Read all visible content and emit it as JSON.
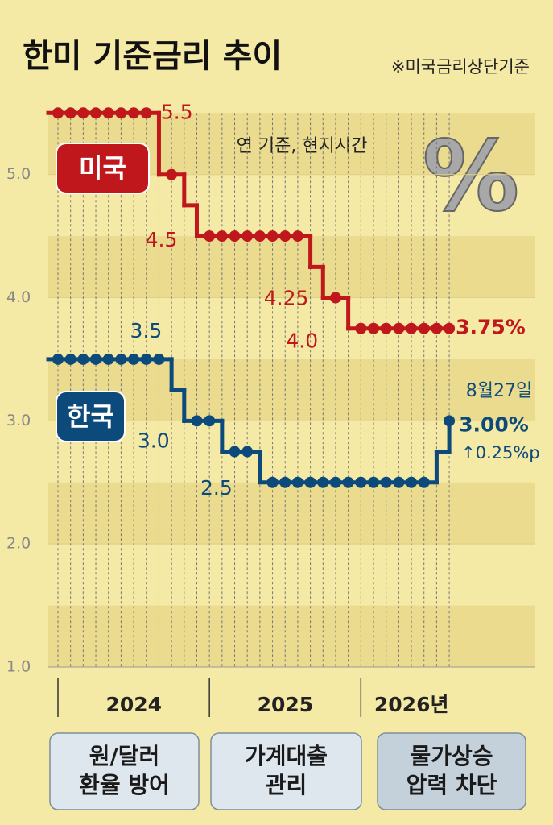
{
  "chart_data": {
    "type": "step-line",
    "title": "한미 기준금리 추이",
    "note": "※미국금리상단기준",
    "subtitle": "연 기준, 현지시간",
    "symbol": "%",
    "categories": [
      null,
      null,
      null,
      null,
      null,
      null,
      null,
      null,
      null,
      null,
      null,
      null,
      null,
      null,
      null,
      null,
      null,
      null,
      null,
      null,
      null,
      null,
      null,
      null,
      null,
      null,
      null,
      null,
      null,
      null,
      null,
      null
    ],
    "year_labels": [
      "2024",
      "2025",
      "2026년"
    ],
    "series": [
      {
        "name": "미국",
        "color": "#c0171c",
        "values": [
          5.5,
          5.5,
          5.5,
          5.5,
          5.5,
          5.5,
          5.5,
          5.5,
          5.0,
          5.0,
          4.75,
          4.5,
          4.5,
          4.5,
          4.5,
          4.5,
          4.5,
          4.5,
          4.5,
          4.5,
          4.25,
          4.0,
          4.0,
          3.75,
          3.75,
          3.75,
          3.75,
          3.75,
          3.75,
          3.75,
          3.75,
          3.75
        ],
        "value_labels": [
          null,
          null,
          null,
          null,
          null,
          null,
          null,
          "5.5",
          null,
          null,
          null,
          "4.5",
          null,
          null,
          null,
          null,
          null,
          null,
          null,
          null,
          "4.25",
          "4.0",
          null,
          null,
          null,
          null,
          null,
          null,
          null,
          null,
          null,
          "3.75%"
        ]
      },
      {
        "name": "한국",
        "color": "#0d4a7c",
        "values": [
          3.5,
          3.5,
          3.5,
          3.5,
          3.5,
          3.5,
          3.5,
          3.5,
          3.5,
          3.25,
          3.0,
          3.0,
          3.0,
          2.75,
          2.75,
          2.75,
          2.5,
          2.5,
          2.5,
          2.5,
          2.5,
          2.5,
          2.5,
          2.5,
          2.5,
          2.5,
          2.5,
          2.5,
          2.5,
          2.5,
          2.75,
          3.0
        ],
        "value_labels": [
          null,
          null,
          null,
          null,
          null,
          null,
          null,
          null,
          "3.5",
          null,
          "3.0",
          null,
          null,
          null,
          null,
          null,
          "2.5",
          null,
          null,
          null,
          null,
          null,
          null,
          null,
          null,
          null,
          null,
          null,
          null,
          null,
          null,
          "3.00%"
        ]
      }
    ],
    "annotations": [
      "8월27일",
      "↑0.25%p"
    ],
    "ylim": [
      1,
      5.6
    ],
    "yticks": [
      {
        "value": 1,
        "label": "1.0"
      },
      {
        "value": 2,
        "label": "2.0"
      },
      {
        "value": 3,
        "label": "3.0"
      },
      {
        "value": 4,
        "label": "4.0"
      },
      {
        "value": 5,
        "label": "5.0"
      }
    ],
    "grid": true,
    "boxes": [
      [
        "원/달러",
        "환율 방어"
      ],
      [
        "가계대출",
        "관리"
      ],
      [
        "물가상승",
        "압력 차단"
      ]
    ]
  }
}
